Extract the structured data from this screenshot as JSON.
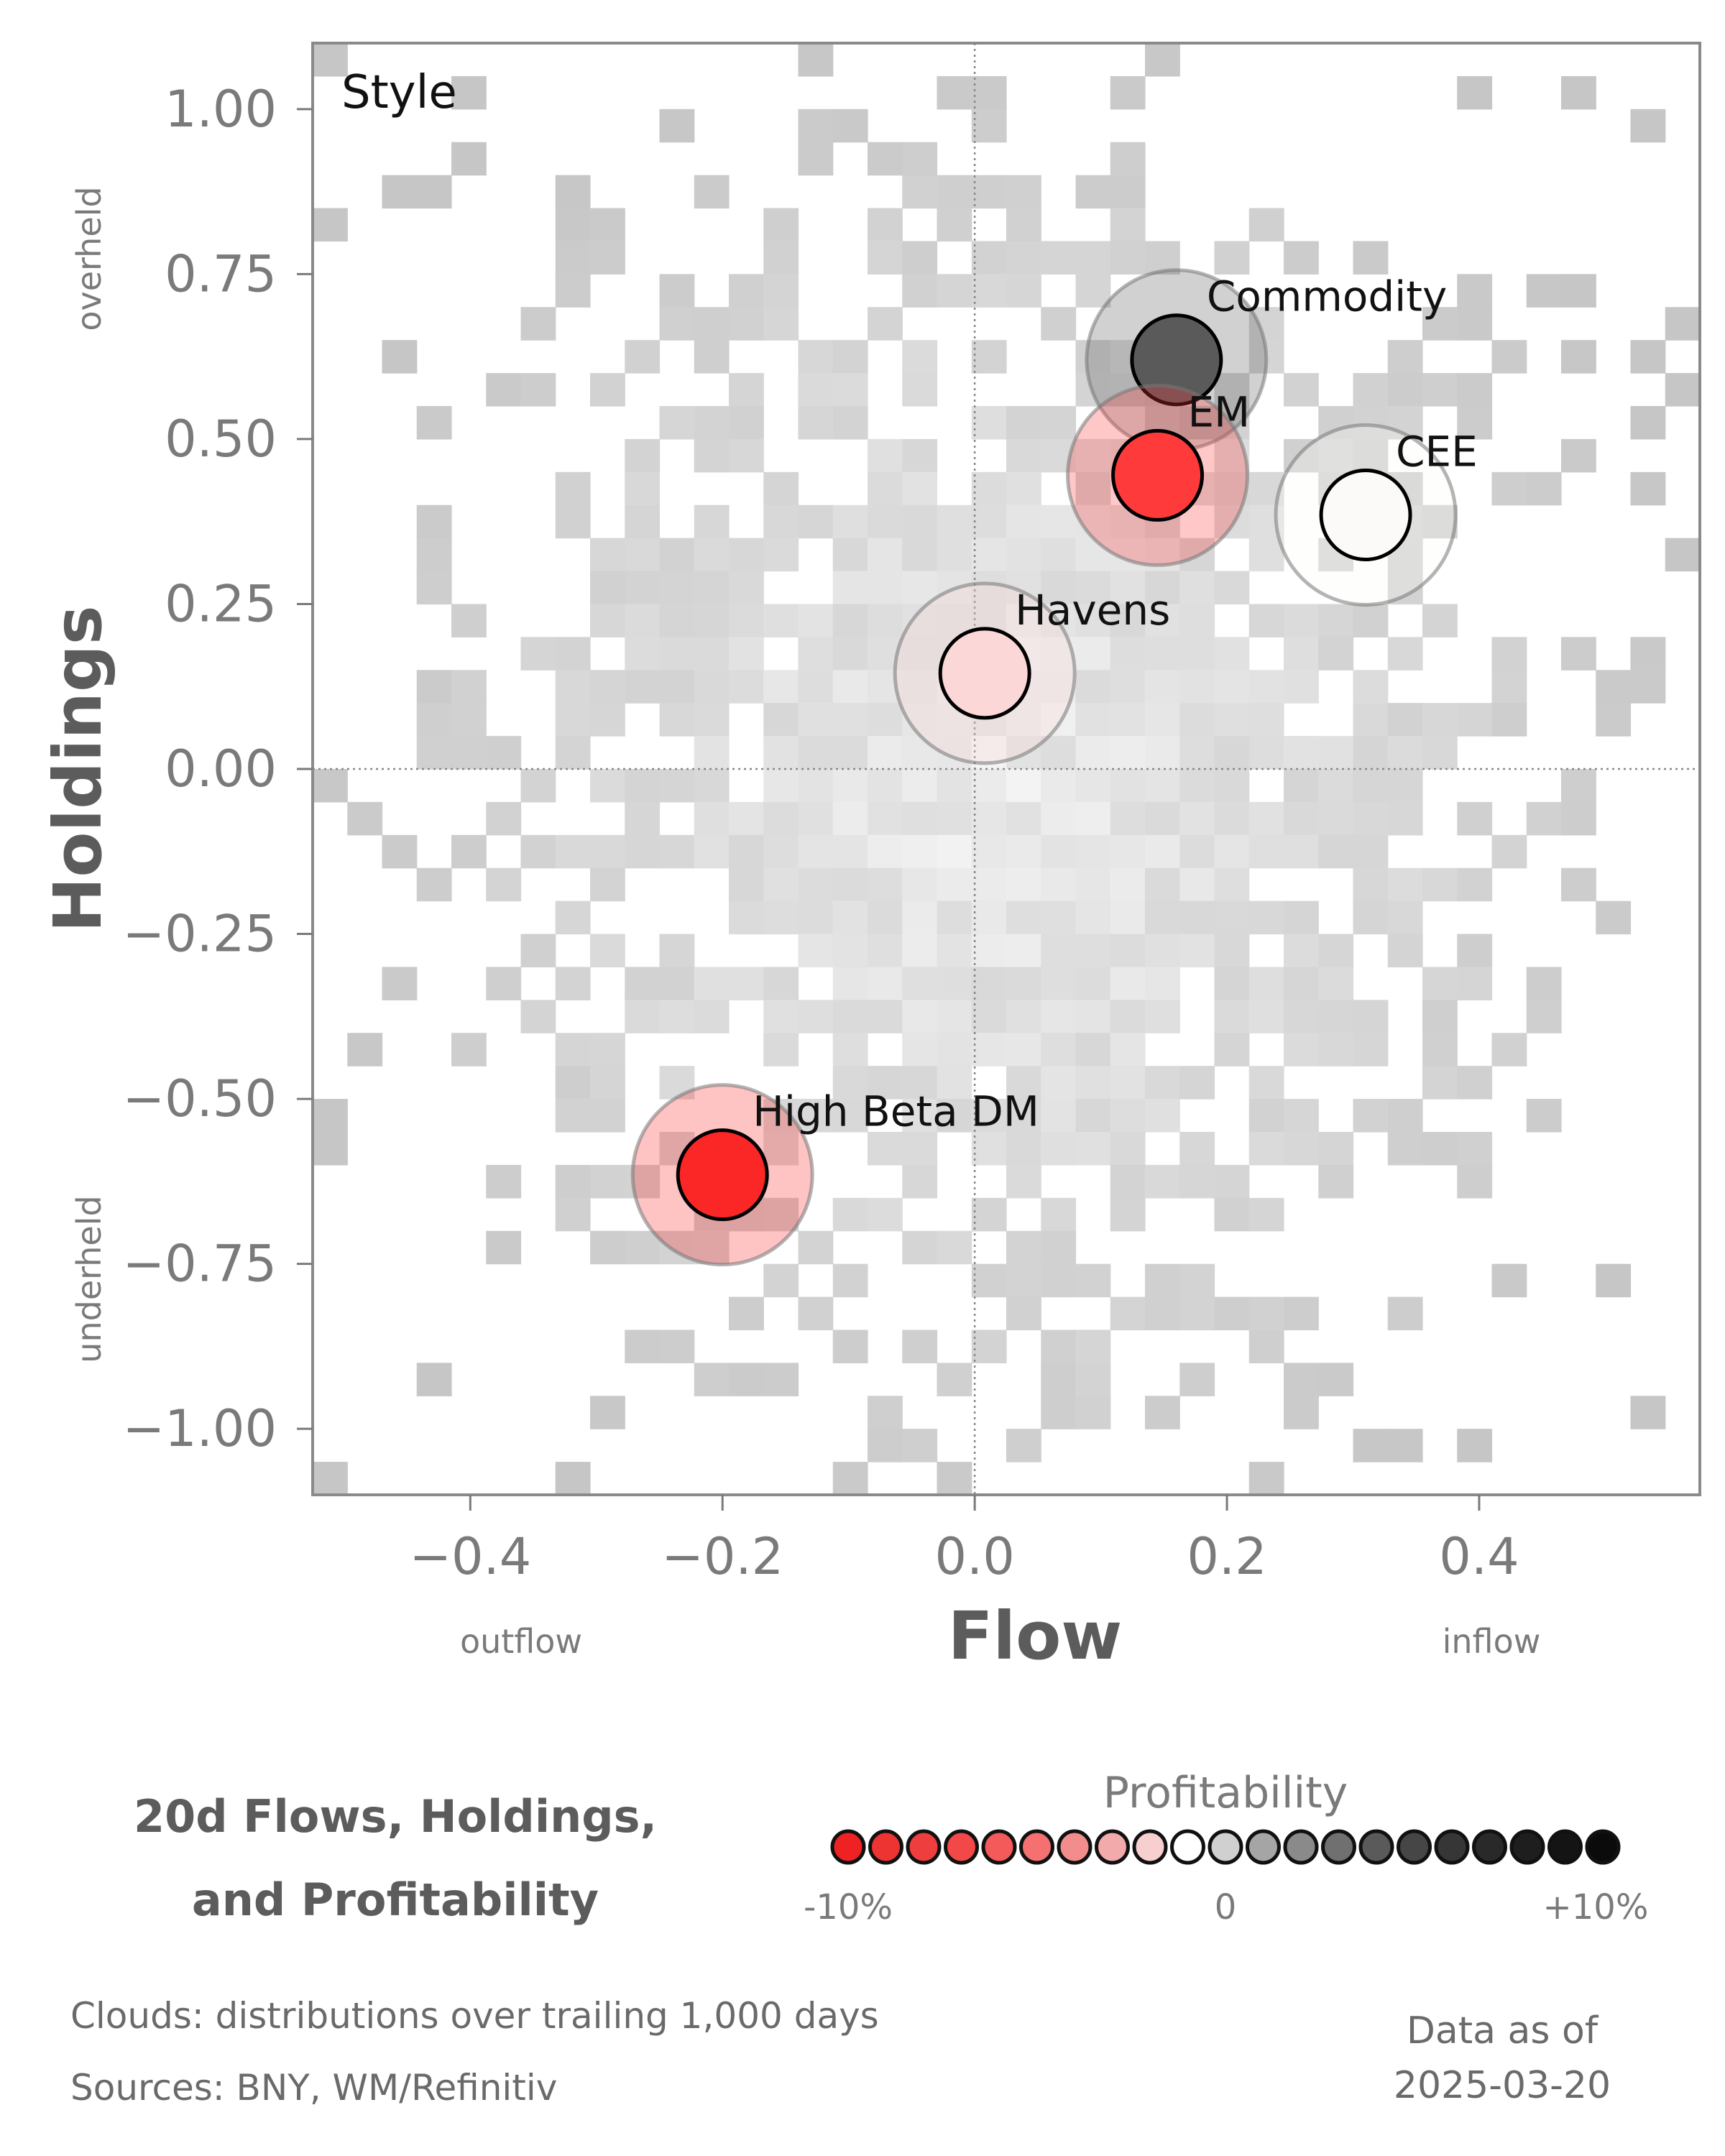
{
  "chart_data": {
    "type": "scatter",
    "panel_label": "Style",
    "xlabel": "Flow",
    "ylabel": "Holdings",
    "xlim": [
      -0.525,
      0.575
    ],
    "ylim": [
      -1.1,
      1.1
    ],
    "x_ticks": [
      -0.4,
      -0.2,
      0.0,
      0.2,
      0.4
    ],
    "x_tick_labels": [
      "−0.4",
      "−0.2",
      "0.0",
      "0.2",
      "0.4"
    ],
    "y_ticks": [
      1.0,
      0.75,
      0.5,
      0.25,
      0.0,
      -0.25,
      -0.5,
      -0.75,
      -1.0
    ],
    "y_tick_labels": [
      "1.00",
      "0.75",
      "0.50",
      "0.25",
      "0.00",
      "−0.25",
      "−0.50",
      "−0.75",
      "−1.00"
    ],
    "x_side_labels": {
      "left": "outflow",
      "right": "inflow"
    },
    "y_side_labels": {
      "top": "overheld",
      "bottom": "underheld"
    },
    "reference_lines": {
      "x": 0.0,
      "y": 0.0
    },
    "background": "heatmap of distributions over trailing 1,000 days",
    "points": [
      {
        "name": "Commodity",
        "x": 0.16,
        "y": 0.62,
        "profitability": 4,
        "color": "#5a5a5a"
      },
      {
        "name": "EM",
        "x": 0.145,
        "y": 0.445,
        "profitability": -8,
        "color": "#ff3a3a"
      },
      {
        "name": "CEE",
        "x": 0.31,
        "y": 0.385,
        "profitability": 0,
        "color": "#fbfaf8"
      },
      {
        "name": "Havens",
        "x": 0.008,
        "y": 0.145,
        "profitability": -2,
        "color": "#fcd7d7"
      },
      {
        "name": "High Beta DM",
        "x": -0.2,
        "y": -0.615,
        "profitability": -9,
        "color": "#fb2626"
      }
    ]
  },
  "title_lines": [
    "20d Flows, Holdings,",
    "and Profitability"
  ],
  "legend": {
    "title": "Profitability",
    "tick_labels": [
      "-10%",
      "0",
      "+10%"
    ],
    "colors": [
      "#ee2222",
      "#ee3333",
      "#ef3e3e",
      "#f24848",
      "#f45a5a",
      "#f57171",
      "#f38d8d",
      "#f2aaaa",
      "#f8cfcf",
      "#ffffff",
      "#d0d0d0",
      "#a5a5a5",
      "#8a8a8a",
      "#707070",
      "#5a5a5a",
      "#464646",
      "#363636",
      "#292929",
      "#1e1e1e",
      "#141414",
      "#0b0b0b"
    ]
  },
  "footer": {
    "clouds_line": "Clouds:  distributions over trailing 1,000 days",
    "sources_line": "Sources:  BNY, WM/Refinitiv",
    "asof_label": "Data as of",
    "asof_date": "2025-03-20"
  }
}
